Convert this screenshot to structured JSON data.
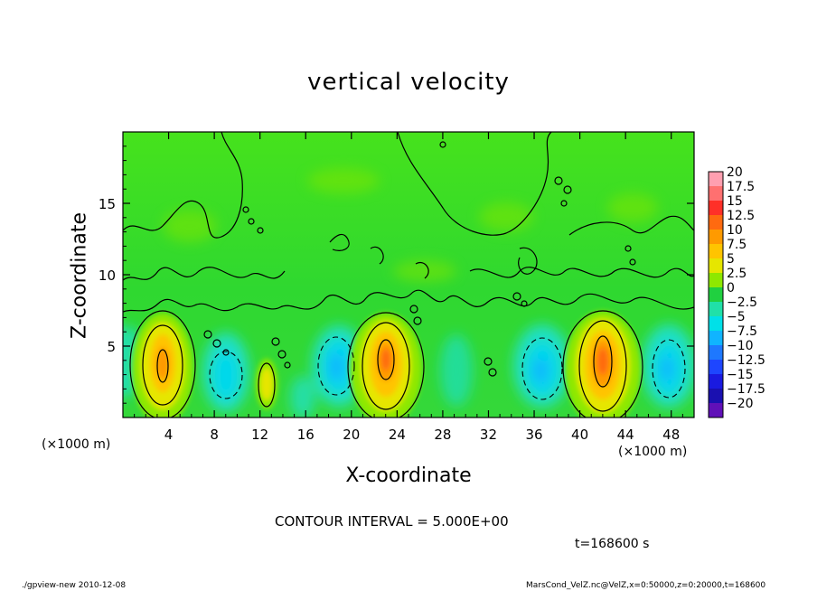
{
  "chart_data": {
    "type": "heatmap",
    "title": "vertical velocity",
    "xlabel": "X-coordinate",
    "ylabel": "Z-coordinate",
    "x_unit_label": "(×1000 m)",
    "x_ticks": [
      4,
      8,
      12,
      16,
      20,
      24,
      28,
      32,
      36,
      40,
      44,
      48
    ],
    "y_ticks": [
      5,
      10,
      15
    ],
    "xlim": [
      0,
      50
    ],
    "ylim": [
      0,
      20
    ],
    "colorbar": {
      "labels": [
        "20",
        "17.5",
        "15",
        "12.5",
        "10",
        "7.5",
        "5",
        "2.5",
        "0",
        "−2.5",
        "−5",
        "−7.5",
        "−10",
        "−12.5",
        "−15",
        "−17.5",
        "−20"
      ],
      "colors": [
        "#ff9fb0",
        "#ff7070",
        "#ff3028",
        "#ff6a10",
        "#ff9a00",
        "#ffc400",
        "#e6e600",
        "#8ee800",
        "#20d040",
        "#20e0a8",
        "#00e0e8",
        "#10b4ff",
        "#1e78ff",
        "#1e46ff",
        "#1a1ae0",
        "#1a10b0",
        "#6010b8"
      ]
    },
    "features": [
      {
        "kind": "updraft",
        "x": 3.5,
        "z": 4.0,
        "peak": 12.5
      },
      {
        "kind": "downdraft",
        "x": 9.0,
        "z": 3.2,
        "peak": -7.5
      },
      {
        "kind": "updraft",
        "x": 12.5,
        "z": 2.5,
        "peak": 7.5
      },
      {
        "kind": "downdraft",
        "x": 18.5,
        "z": 3.5,
        "peak": -10
      },
      {
        "kind": "updraft",
        "x": 23.0,
        "z": 4.0,
        "peak": 12.5
      },
      {
        "kind": "downdraft",
        "x": 37.0,
        "z": 3.5,
        "peak": -10
      },
      {
        "kind": "updraft",
        "x": 42.0,
        "z": 4.0,
        "peak": 15
      },
      {
        "kind": "downdraft",
        "x": 47.0,
        "z": 3.5,
        "peak": -10
      }
    ],
    "contour_interval_text": "CONTOUR INTERVAL = 5.000E+00",
    "time_text": "t=168600 s"
  },
  "footer": {
    "left": "./gpview-new  2010-12-08",
    "right": "MarsCond_VelZ.nc@VelZ,x=0:50000,z=0:20000,t=168600"
  }
}
